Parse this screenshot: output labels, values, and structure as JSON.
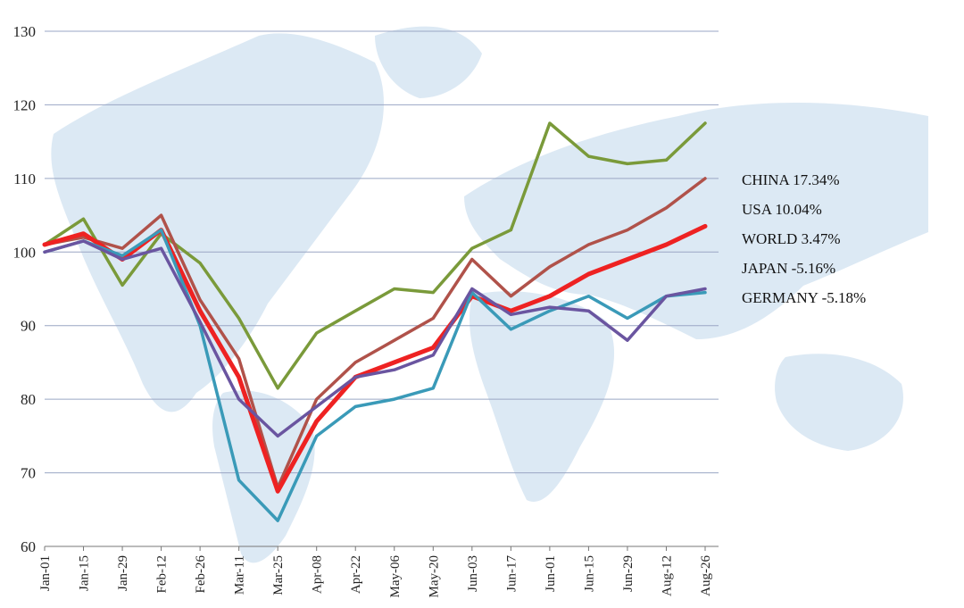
{
  "chart_data": {
    "type": "line",
    "title": "",
    "xlabel": "",
    "ylabel": "",
    "ylim": [
      60,
      130
    ],
    "yticks": [
      60,
      70,
      80,
      90,
      100,
      110,
      120,
      130
    ],
    "x_tick_labels": [
      "Jan-01",
      "Jan-15",
      "Jan-29",
      "Feb-12",
      "Feb-26",
      "Mar-11",
      "Mar-25",
      "Apr-08",
      "Apr-22",
      "May-06",
      "May-20",
      "Jun-03",
      "Jun-17",
      "Jun-01",
      "Jun-15",
      "Jun-29",
      "Aug-12",
      "Aug-26"
    ],
    "grid": true,
    "legend": [
      {
        "name": "CHINA",
        "change": "17.34%",
        "color": "#7a9a3a"
      },
      {
        "name": "USA",
        "change": "10.04%",
        "color": "#b0524a"
      },
      {
        "name": "WORLD",
        "change": "3.47%",
        "color": "#ee2222"
      },
      {
        "name": "JAPAN",
        "change": "-5.16%",
        "color": "#3a9ab8"
      },
      {
        "name": "GERMANY",
        "change": "-5.18%",
        "color": "#6a55a0"
      }
    ],
    "series": [
      {
        "name": "CHINA",
        "color": "#7a9a3a",
        "values": [
          101,
          104.5,
          95.5,
          102.5,
          98.5,
          91,
          81.5,
          89,
          92,
          95,
          94.5,
          100.5,
          103,
          117.5,
          113,
          112,
          112.5,
          117.5
        ]
      },
      {
        "name": "USA",
        "color": "#b0524a",
        "values": [
          101,
          102,
          100.5,
          105,
          93.5,
          85.5,
          68,
          80,
          85,
          88,
          91,
          99,
          94,
          98,
          101,
          103,
          106,
          110
        ]
      },
      {
        "name": "WORLD",
        "color": "#ee2222",
        "values": [
          101,
          102.5,
          99,
          103,
          92,
          83,
          67.5,
          77,
          83,
          85,
          87,
          94,
          92,
          94,
          97,
          99,
          101,
          103.5
        ]
      },
      {
        "name": "JAPAN",
        "color": "#3a9ab8",
        "values": [
          100,
          101.5,
          99.5,
          103,
          90,
          69,
          63.5,
          75,
          79,
          80,
          81.5,
          94.5,
          89.5,
          92,
          94,
          91,
          94,
          94.5
        ]
      },
      {
        "name": "GERMANY",
        "color": "#6a55a0",
        "values": [
          100,
          101.5,
          99,
          100.5,
          90.5,
          80,
          75,
          79,
          83,
          84,
          86,
          95,
          91.5,
          92.5,
          92,
          88,
          94,
          95
        ]
      }
    ]
  }
}
